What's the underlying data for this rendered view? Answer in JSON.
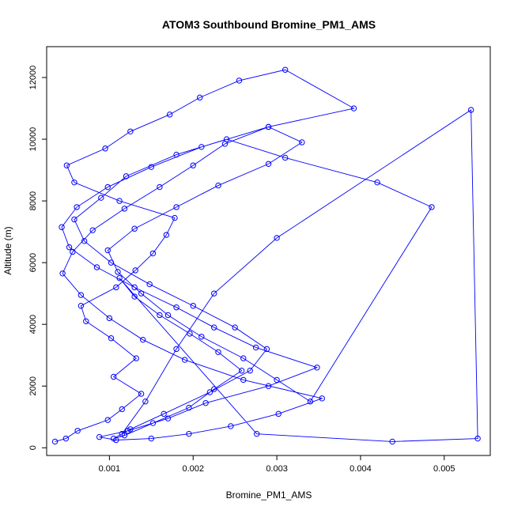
{
  "colors": {
    "series": "#0000ff",
    "axis": "#000000",
    "background": "#ffffff"
  },
  "chart_data": {
    "type": "scatter",
    "title": "ATOM3 Southbound Bromine_PM1_AMS",
    "xlabel": "Bromine_PM1_AMS",
    "ylabel": "Altitude (m)",
    "xlim": [
      0.00025,
      0.00555
    ],
    "ylim": [
      -250,
      13000
    ],
    "x_ticks": [
      0.001,
      0.002,
      0.003,
      0.004,
      0.005
    ],
    "x_tick_labels": [
      "0.001",
      "0.002",
      "0.003",
      "0.004",
      "0.005"
    ],
    "y_ticks": [
      0,
      2000,
      4000,
      6000,
      8000,
      10000,
      12000
    ],
    "y_tick_labels": [
      "0",
      "2000",
      "4000",
      "6000",
      "8000",
      "10000",
      "12000"
    ],
    "grid": false,
    "connected": true,
    "marker": "open-circle",
    "series": [
      {
        "x": [
          0.00035,
          0.00048,
          0.00062,
          0.00098,
          0.00115,
          0.00138,
          0.00105,
          0.00132,
          0.00102,
          0.00072,
          0.00066,
          0.00108,
          0.00131,
          0.00152,
          0.00168,
          0.00178,
          0.00112,
          0.00058,
          0.00049,
          0.00095,
          0.00125,
          0.00172,
          0.00208,
          0.00255,
          0.0031,
          0.00392,
          0.0029,
          0.0021,
          0.0015,
          0.00098,
          0.00061,
          0.00043,
          0.00052,
          0.00085,
          0.0013,
          0.0018,
          0.00225,
          0.00275,
          0.00348,
          0.0029,
          0.00215,
          0.0017,
          0.00122,
          0.00088,
          0.00108,
          0.0015,
          0.00195,
          0.00245,
          0.00302,
          0.00354,
          0.0026,
          0.0019,
          0.0014,
          0.001,
          0.00066,
          0.00044,
          0.00056,
          0.0008,
          0.00118,
          0.0016,
          0.002,
          0.00238,
          0.0029,
          0.0033,
          0.0029,
          0.0023,
          0.0018,
          0.0013,
          0.00098,
          0.0011,
          0.00138,
          0.0017,
          0.0021,
          0.0026,
          0.003,
          0.0034,
          0.00485,
          0.0042,
          0.0031,
          0.0024,
          0.0018,
          0.0012,
          0.0009,
          0.00058,
          0.0007,
          0.00102,
          0.00148,
          0.002,
          0.0025,
          0.00288,
          0.00268,
          0.0022,
          0.00165,
          0.00125,
          0.00105,
          0.00118,
          0.00152,
          0.00195,
          0.00225,
          0.00258,
          0.0023,
          0.00196,
          0.0016,
          0.0013,
          0.00112,
          0.00276,
          0.00438,
          0.0054,
          0.00532,
          0.003,
          0.00225,
          0.0018,
          0.00143,
          0.00115
        ],
        "y": [
          200,
          300,
          550,
          900,
          1250,
          1750,
          2300,
          2900,
          3550,
          4100,
          4600,
          5200,
          5750,
          6300,
          6900,
          7450,
          8000,
          8600,
          9150,
          9700,
          10250,
          10800,
          11350,
          11900,
          12250,
          11000,
          10400,
          9750,
          9100,
          8450,
          7800,
          7150,
          6500,
          5850,
          5200,
          4550,
          3900,
          3250,
          2600,
          2000,
          1450,
          950,
          550,
          350,
          250,
          300,
          450,
          700,
          1100,
          1600,
          2200,
          2850,
          3500,
          4200,
          4950,
          5650,
          6350,
          7050,
          7750,
          8450,
          9150,
          9850,
          10400,
          9900,
          9200,
          8500,
          7800,
          7100,
          6400,
          5700,
          5000,
          4300,
          3600,
          2900,
          2200,
          1500,
          7800,
          8600,
          9400,
          10000,
          9500,
          8800,
          8100,
          7400,
          6700,
          6000,
          5300,
          4600,
          3900,
          3200,
          2500,
          1800,
          1100,
          600,
          300,
          400,
          800,
          1300,
          1900,
          2500,
          3100,
          3700,
          4300,
          4900,
          5500,
          450,
          200,
          300,
          10950,
          6800,
          5000,
          3200,
          1500,
          450
        ]
      }
    ]
  }
}
